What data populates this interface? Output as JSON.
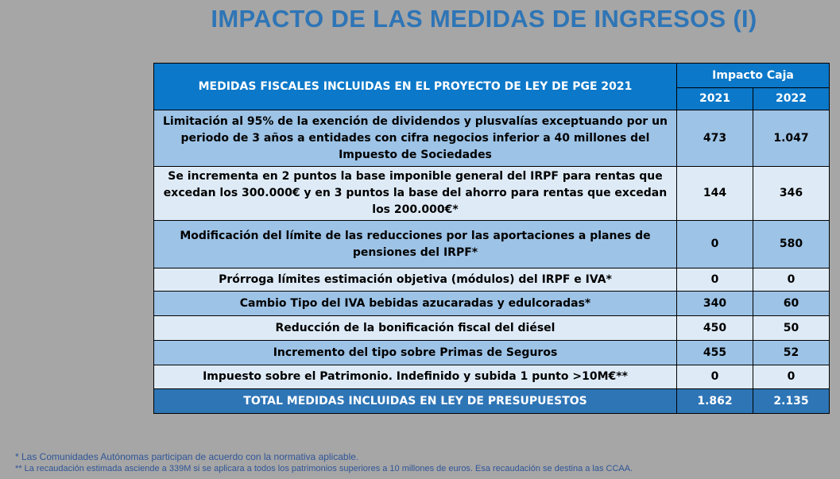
{
  "title": "IMPACTO DE LAS MEDIDAS DE INGRESOS (I)",
  "table": {
    "header_main": "MEDIDAS FISCALES INCLUIDAS EN EL PROYECTO DE LEY DE PGE 2021",
    "header_group": "Impacto Caja",
    "year1": "2021",
    "year2": "2022",
    "rows": [
      {
        "label": "Limitación al 95% de la exención de dividendos y plusvalías exceptuando por un periodo de 3 años a entidades con cifra negocios inferior a 40 millones del Impuesto de Sociedades",
        "v2021": "473",
        "v2022": "1.047"
      },
      {
        "label": "Se incrementa en 2 puntos la base imponible general del IRPF para rentas que excedan los 300.000€ y en 3 puntos la base del ahorro para rentas que excedan los 200.000€*",
        "v2021": "144",
        "v2022": "346"
      },
      {
        "label": "Modificación del límite de las reducciones por las aportaciones a planes de pensiones del IRPF*",
        "v2021": "0",
        "v2022": "580"
      },
      {
        "label": "Prórroga límites estimación objetiva (módulos) del IRPF e IVA*",
        "v2021": "0",
        "v2022": "0"
      },
      {
        "label": "Cambio Tipo del IVA bebidas azucaradas y edulcoradas*",
        "v2021": "340",
        "v2022": "60"
      },
      {
        "label": "Reducción de la bonificación fiscal del diésel",
        "v2021": "450",
        "v2022": "50"
      },
      {
        "label": "Incremento del tipo sobre Primas de Seguros",
        "v2021": "455",
        "v2022": "52"
      },
      {
        "label": "Impuesto sobre el Patrimonio. Indefinido y subida 1 punto >10M€**",
        "v2021": "0",
        "v2022": "0"
      }
    ],
    "total": {
      "label": "TOTAL MEDIDAS INCLUIDAS EN LEY DE PRESUPUESTOS",
      "v2021": "1.862",
      "v2022": "2.135"
    }
  },
  "notes": {
    "note1": "* Las Comunidades Autónomas participan de acuerdo con la normativa aplicable.",
    "note2": "** La recaudación estimada asciende a 339M si se aplicara a todos los patrimonios superiores a 10 millones de euros. Esa recaudación se destina a las CCAA."
  }
}
